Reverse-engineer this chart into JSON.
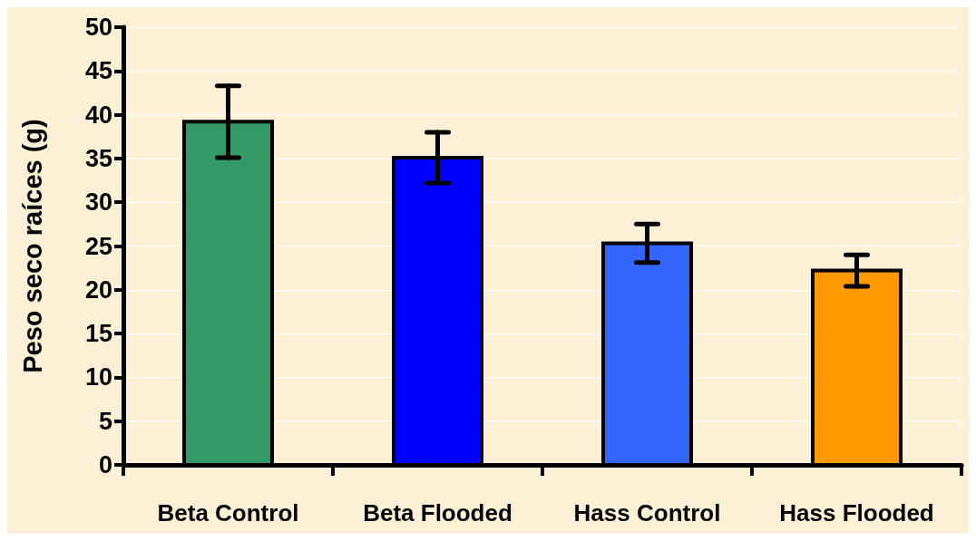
{
  "chart_data": {
    "type": "bar",
    "ylabel": "Peso seco raíces (g)",
    "categories": [
      "Beta Control",
      "Beta Flooded",
      "Hass Control",
      "Hass Flooded"
    ],
    "values": [
      39.2,
      35.1,
      25.3,
      22.2
    ],
    "colors": [
      "#339966",
      "#0000ff",
      "#3366ff",
      "#ff9900"
    ],
    "errors": [
      4.1,
      2.9,
      2.2,
      1.8
    ],
    "ylim": [
      0,
      50
    ],
    "yticks": [
      0,
      5,
      10,
      15,
      20,
      25,
      30,
      35,
      40,
      45,
      50
    ],
    "grid": "y"
  }
}
